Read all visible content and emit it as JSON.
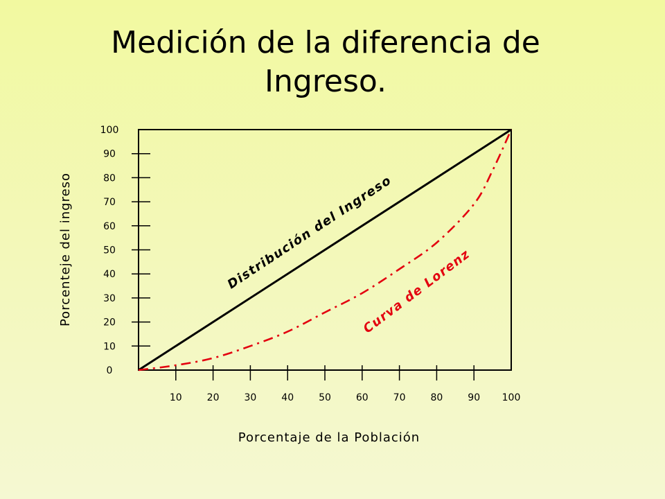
{
  "title": "Medición de la diferencia de Ingreso.",
  "colors": {
    "equality": "#000000",
    "lorenz": "#e3000f",
    "background": "#f3f8bc"
  },
  "chart_data": {
    "type": "line",
    "title": "Medición de la diferencia de Ingreso.",
    "xlabel": "Porcentaje de la Población",
    "ylabel": "Porcenteje del ingreso",
    "xlim": [
      0,
      100
    ],
    "ylim": [
      0,
      100
    ],
    "x_ticks": [
      10,
      20,
      30,
      40,
      50,
      60,
      70,
      80,
      90,
      100
    ],
    "y_ticks": [
      0,
      10,
      20,
      30,
      40,
      50,
      60,
      70,
      80,
      90,
      100
    ],
    "grid": false,
    "series": [
      {
        "name": "Distribución del Ingreso",
        "style": "solid",
        "color": "#000000",
        "x": [
          0,
          100
        ],
        "y": [
          0,
          100
        ]
      },
      {
        "name": "Curva de Lorenz",
        "style": "dash-dot",
        "color": "#e3000f",
        "x": [
          0,
          10,
          20,
          30,
          40,
          50,
          60,
          70,
          80,
          90,
          95,
          100
        ],
        "y": [
          0,
          2,
          5,
          10,
          16,
          24,
          32,
          42,
          53,
          69,
          83,
          100
        ]
      }
    ]
  }
}
